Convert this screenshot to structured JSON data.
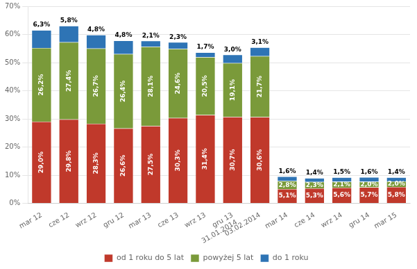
{
  "chart_data": {
    "type": "bar",
    "stacked": true,
    "data_labels": true,
    "grid": true,
    "legend": "bottom",
    "categories": [
      "mar 12",
      "cze 12",
      "wrz 12",
      "gru 12",
      "mar 13",
      "cze 13",
      "wrz 13",
      "gru 13\n31.01.2014",
      "03.02.2014",
      "mar 14",
      "cze 14",
      "wrz 14",
      "gru 14",
      "mar 15"
    ],
    "series": [
      {
        "name": "od 1 roku do 5 lat",
        "color": "#c0392b",
        "values": [
          29.0,
          29.8,
          28.3,
          26.6,
          27.5,
          30.3,
          31.4,
          30.7,
          30.6,
          5.1,
          5.3,
          5.6,
          5.7,
          5.8
        ],
        "value_labels": [
          "29,0%",
          "29,8%",
          "28,3%",
          "26,6%",
          "27,5%",
          "30,3%",
          "31,4%",
          "30,7%",
          "30,6%",
          "5,1%",
          "5,3%",
          "5,6%",
          "5,7%",
          "5,8%"
        ]
      },
      {
        "name": "powyżej 5 lat",
        "color": "#7a9a3a",
        "values": [
          26.2,
          27.4,
          26.7,
          26.4,
          28.1,
          24.6,
          20.5,
          19.1,
          21.7,
          2.8,
          2.3,
          2.1,
          2.0,
          2.0
        ],
        "value_labels": [
          "26,2%",
          "27,4%",
          "26,7%",
          "26,4%",
          "28,1%",
          "24,6%",
          "20,5%",
          "19,1%",
          "21,7%",
          "2,8%",
          "2,3%",
          "2,1%",
          "2,0%",
          "2,0%"
        ]
      },
      {
        "name": "do 1 roku",
        "color": "#2e74b5",
        "values": [
          6.3,
          5.8,
          4.8,
          4.8,
          2.1,
          2.3,
          1.7,
          3.0,
          3.1,
          1.6,
          1.4,
          1.5,
          1.6,
          1.4
        ],
        "value_labels": [
          "6,3%",
          "5,8%",
          "4,8%",
          "4,8%",
          "2,1%",
          "2,3%",
          "1,7%",
          "3,0%",
          "3,1%",
          "1,6%",
          "1,4%",
          "1,5%",
          "1,6%",
          "1,4%"
        ]
      }
    ],
    "ylim": [
      0,
      70
    ],
    "yticks": [
      {
        "value": 0,
        "label": "0%"
      },
      {
        "value": 10,
        "label": "10%"
      },
      {
        "value": 20,
        "label": "20%"
      },
      {
        "value": 30,
        "label": "30%"
      },
      {
        "value": 40,
        "label": "40%"
      },
      {
        "value": 50,
        "label": "50%"
      },
      {
        "value": 60,
        "label": "60%"
      },
      {
        "value": 70,
        "label": "70%"
      }
    ]
  }
}
